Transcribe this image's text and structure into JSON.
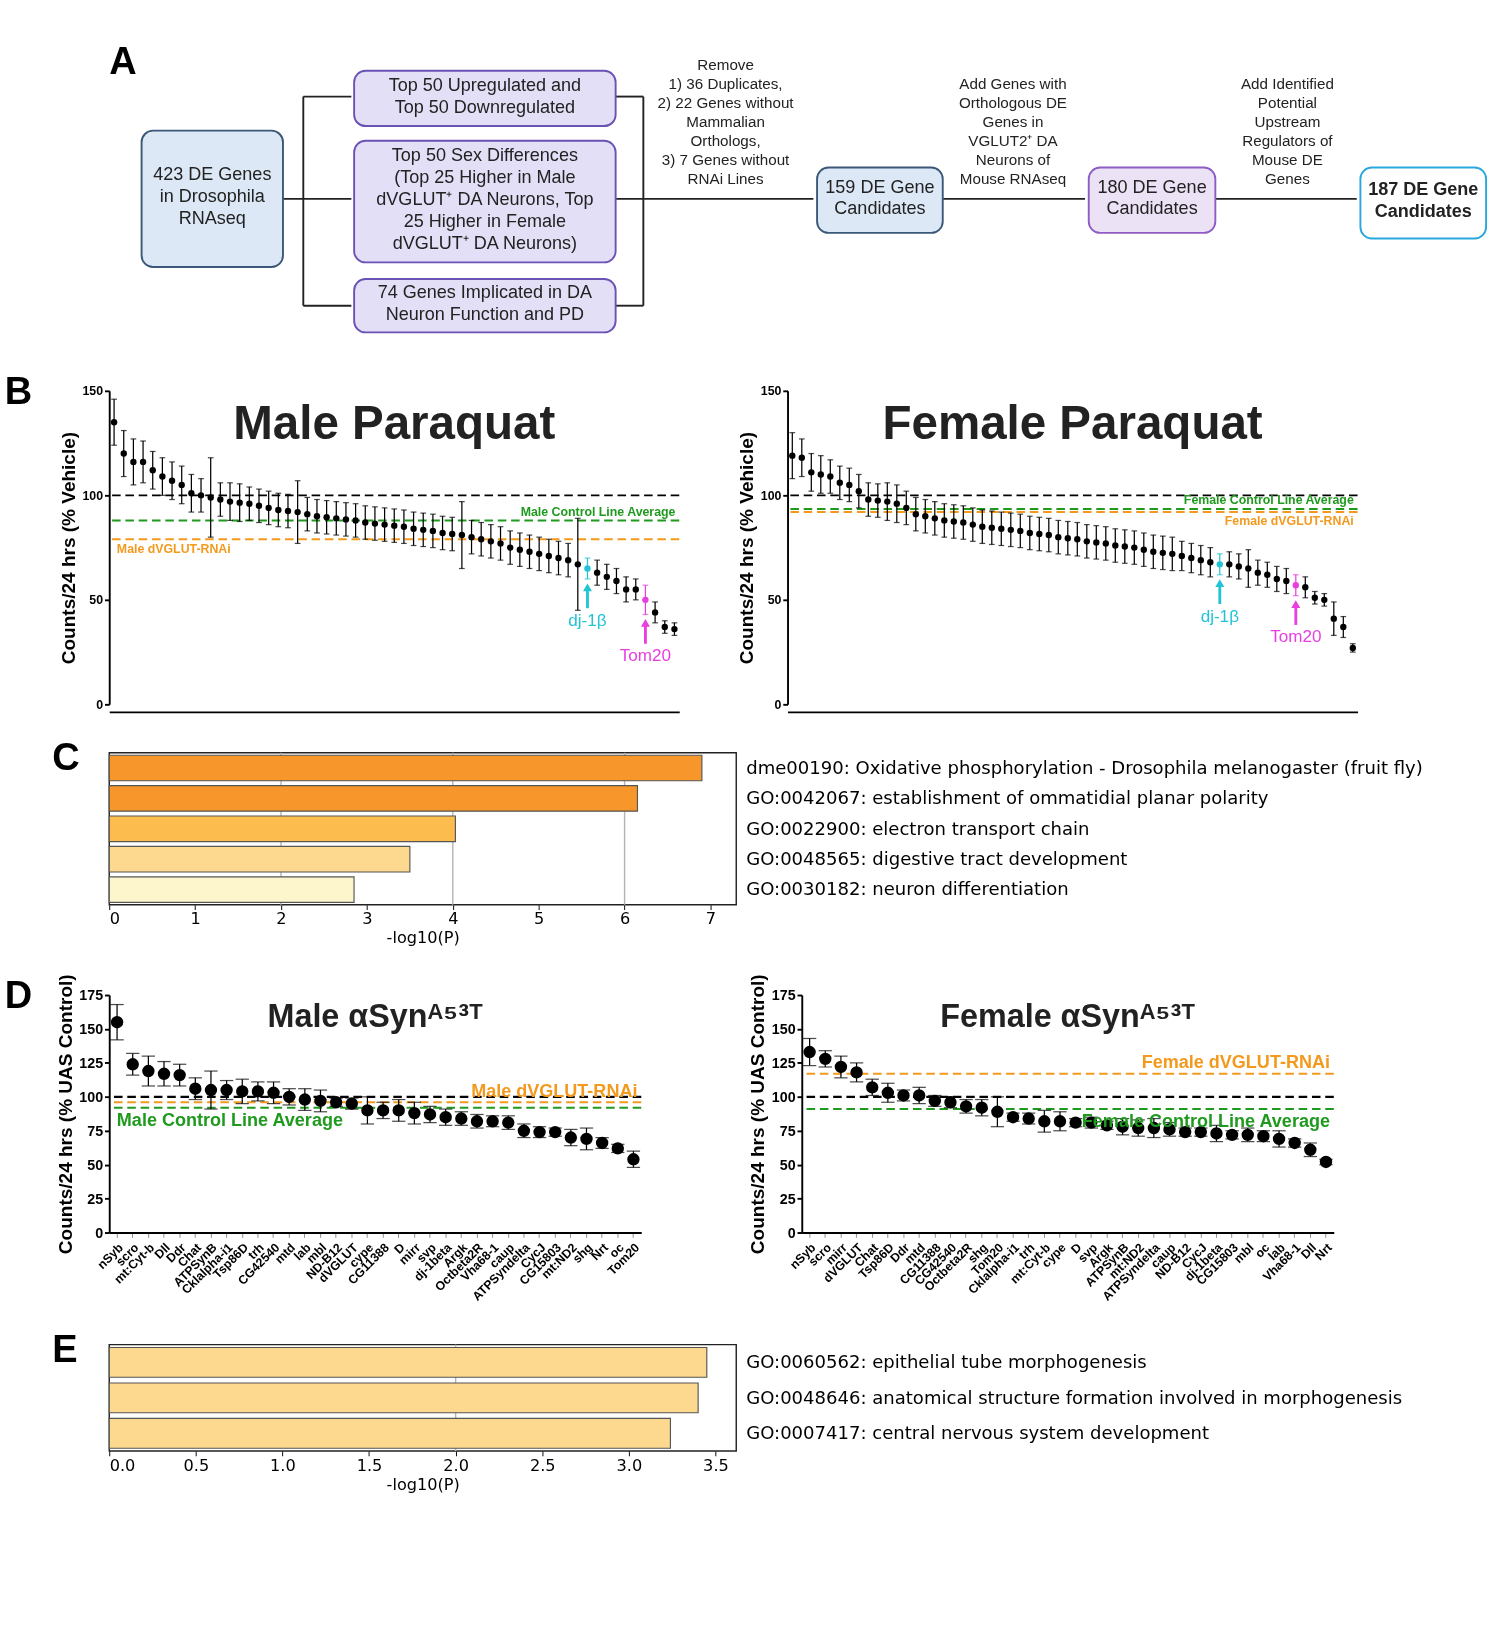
{
  "chart_data": [
    {
      "type": "other",
      "annotations": [
        "A",
        "423 DE Genes\nin Drosophila\nRNAseq",
        "Top 50 Upregulated and\nTop 50 Downregulated",
        "Top 50 Sex Differences\n(Top 25 Higher in Male\ndVGLUT⁺ DA Neurons, Top\n25 Higher in Female\ndVGLUT⁺ DA Neurons)",
        "74 Genes Implicated in DA\nNeuron Function and PD",
        "Remove\n1) 36 Duplicates,\n2) 22 Genes without\nMammalian\nOrthologs,\n3) 7 Genes without\nRNAi Lines",
        "159 DE Gene\nCandidates",
        "Add Genes with\nOrthologous DE\nGenes in\nVGLUT2⁺ DA\nNeurons of\nMouse RNAseq",
        "180 DE Gene\nCandidates",
        "Add Identified\nPotential\nUpstream\nRegulators of\nMouse DE\nGenes",
        "187 DE Gene\nCandidates"
      ]
    },
    {
      "type": "scatter",
      "title": "Male Paraquat",
      "ylabel": "Counts/24 hrs (% Vehicle)",
      "marker": "circle",
      "ylim": [
        0,
        150
      ],
      "yticks": [
        0,
        50,
        100,
        150
      ],
      "tick_labels": "y",
      "categories": [
        null,
        null,
        null,
        null,
        null,
        null,
        null,
        null,
        null,
        null,
        null,
        null,
        null,
        null,
        null,
        null,
        null,
        null,
        null,
        null,
        null,
        null,
        null,
        null,
        null,
        null,
        null,
        null,
        null,
        null,
        null,
        null,
        null,
        null,
        null,
        null,
        null,
        null,
        null,
        null,
        null,
        null,
        null,
        null,
        null,
        null,
        null,
        null,
        null,
        null,
        null,
        null,
        null,
        null,
        null,
        null,
        null,
        null,
        null
      ],
      "values": [
        135,
        120,
        116,
        116,
        112,
        109,
        107,
        105,
        101,
        100,
        99,
        98,
        97,
        96.5,
        96,
        95,
        94,
        93,
        92.5,
        92,
        91,
        90,
        89.5,
        89,
        88.5,
        88,
        87,
        86.5,
        86,
        85.5,
        85,
        84,
        83.5,
        83,
        82,
        81.5,
        81,
        80,
        79,
        78,
        77,
        75,
        74,
        73,
        72,
        71,
        70,
        69,
        67,
        65,
        63,
        61,
        59,
        55,
        55,
        50,
        44,
        37,
        36
      ],
      "errors": [
        11,
        11,
        11,
        10,
        9,
        9,
        9,
        9,
        9,
        8,
        19,
        8,
        9,
        9,
        8,
        8,
        8,
        8,
        8,
        15,
        8,
        8,
        8,
        8,
        8,
        8,
        8,
        8,
        8,
        8,
        8,
        8,
        8,
        8,
        8,
        8,
        16,
        8,
        8,
        8,
        8,
        8,
        8,
        8,
        8,
        8,
        8,
        8,
        22,
        5,
        6,
        6,
        6,
        6,
        5,
        7,
        5,
        3,
        3
      ],
      "colors": [
        "#000000",
        "#000000",
        "#000000",
        "#000000",
        "#000000",
        "#000000",
        "#000000",
        "#000000",
        "#000000",
        "#000000",
        "#000000",
        "#000000",
        "#000000",
        "#000000",
        "#000000",
        "#000000",
        "#000000",
        "#000000",
        "#000000",
        "#000000",
        "#000000",
        "#000000",
        "#000000",
        "#000000",
        "#000000",
        "#000000",
        "#000000",
        "#000000",
        "#000000",
        "#000000",
        "#000000",
        "#000000",
        "#000000",
        "#000000",
        "#000000",
        "#000000",
        "#000000",
        "#000000",
        "#000000",
        "#000000",
        "#000000",
        "#000000",
        "#000000",
        "#000000",
        "#000000",
        "#000000",
        "#000000",
        "#000000",
        "#000000",
        "#22c4d4",
        "#000000",
        "#000000",
        "#000000",
        "#000000",
        "#000000",
        "#e83fe0",
        "#000000",
        "#000000",
        "#000000"
      ],
      "ref_lines": [
        {
          "axis": "y",
          "value": 100,
          "color": "#000000",
          "line_style": "dashed"
        },
        {
          "axis": "y",
          "value": 88,
          "label": "Male Control Line Average",
          "color": "#1f9a1f",
          "line_style": "dashed"
        },
        {
          "axis": "y",
          "value": 79,
          "label": "Male dVGLUT-RNAi",
          "color": "#f39a1e",
          "line_style": "dashed"
        }
      ],
      "annotations": [
        "B",
        {
          "text": "dj-1β",
          "y": 65
        },
        {
          "text": "Tom20",
          "y": 50
        }
      ]
    },
    {
      "type": "scatter",
      "title": "Female Paraquat",
      "ylabel": "Counts/24 hrs (% Vehicle)",
      "marker": "circle",
      "ylim": [
        0,
        150
      ],
      "yticks": [
        0,
        50,
        100,
        150
      ],
      "tick_labels": "y",
      "categories": [
        null,
        null,
        null,
        null,
        null,
        null,
        null,
        null,
        null,
        null,
        null,
        null,
        null,
        null,
        null,
        null,
        null,
        null,
        null,
        null,
        null,
        null,
        null,
        null,
        null,
        null,
        null,
        null,
        null,
        null,
        null,
        null,
        null,
        null,
        null,
        null,
        null,
        null,
        null,
        null,
        null,
        null,
        null,
        null,
        null,
        null,
        null,
        null,
        null,
        null,
        null,
        null,
        null,
        null,
        null,
        null,
        null,
        null,
        null,
        null
      ],
      "values": [
        119,
        118,
        111,
        110,
        109,
        106,
        105,
        102,
        98,
        97.5,
        97,
        96,
        94,
        91,
        90,
        89,
        88,
        87.5,
        87,
        86,
        85,
        84.5,
        84,
        83.5,
        83,
        82,
        81.5,
        81,
        80,
        79.5,
        79,
        78,
        77.5,
        77,
        76,
        75.5,
        75,
        74,
        73,
        72.5,
        72,
        71,
        70,
        69,
        68,
        67,
        67,
        66,
        65,
        63,
        62,
        60,
        59,
        57,
        56,
        51,
        50,
        41,
        37,
        27
      ],
      "errors": [
        11,
        9,
        9,
        9,
        8,
        8,
        8,
        8,
        8,
        8,
        9,
        9,
        8,
        8,
        8,
        8,
        8,
        8,
        8,
        8,
        8,
        8,
        8,
        8,
        8,
        8,
        8,
        8,
        8,
        8,
        8,
        8,
        8,
        8,
        8,
        8,
        8,
        8,
        8,
        8,
        8,
        7,
        7,
        7,
        7,
        5,
        6,
        6,
        9,
        6,
        6,
        6,
        6,
        5,
        5,
        3,
        3,
        8,
        5,
        2
      ],
      "colors": [
        "#000000",
        "#000000",
        "#000000",
        "#000000",
        "#000000",
        "#000000",
        "#000000",
        "#000000",
        "#000000",
        "#000000",
        "#000000",
        "#000000",
        "#000000",
        "#000000",
        "#000000",
        "#000000",
        "#000000",
        "#000000",
        "#000000",
        "#000000",
        "#000000",
        "#000000",
        "#000000",
        "#000000",
        "#000000",
        "#000000",
        "#000000",
        "#000000",
        "#000000",
        "#000000",
        "#000000",
        "#000000",
        "#000000",
        "#000000",
        "#000000",
        "#000000",
        "#000000",
        "#000000",
        "#000000",
        "#000000",
        "#000000",
        "#000000",
        "#000000",
        "#000000",
        "#000000",
        "#22c4d4",
        "#000000",
        "#000000",
        "#000000",
        "#000000",
        "#000000",
        "#000000",
        "#000000",
        "#e83fe0",
        "#000000",
        "#000000",
        "#000000",
        "#000000",
        "#000000",
        "#000000"
      ],
      "ref_lines": [
        {
          "axis": "y",
          "value": 100,
          "color": "#000000",
          "line_style": "dashed"
        },
        {
          "axis": "y",
          "value": 93.5,
          "label": "Female Control Line Average",
          "color": "#1f9a1f",
          "line_style": "dashed"
        },
        {
          "axis": "y",
          "value": 92,
          "label": "Female dVGLUT-RNAi",
          "color": "#f39a1e",
          "line_style": "dashed"
        }
      ],
      "annotations": [
        {
          "text": "dj-1β",
          "y": 67
        },
        {
          "text": "Tom20",
          "y": 57
        }
      ]
    },
    {
      "type": "bar",
      "orientation": "horizontal",
      "xlabel": "-log10(P)",
      "xlim": [
        0,
        7.3
      ],
      "xticks": [
        0,
        1,
        2,
        3,
        4,
        5,
        6,
        7
      ],
      "categories": [
        "dme00190: Oxidative phosphorylation - Drosophila melanogaster (fruit fly)",
        "GO:0042067: establishment of ommatidial planar polarity",
        "GO:0022900: electron transport chain",
        "GO:0048565: digestive tract development",
        "GO:0030182: neuron differentiation"
      ],
      "values": [
        6.9,
        6.15,
        4.03,
        3.5,
        2.85
      ],
      "colors": [
        "#f7962a",
        "#f7962a",
        "#fcbc4e",
        "#fcd98e",
        "#fdf6cc"
      ],
      "ref_lines": [
        {
          "axis": "x",
          "value": 2,
          "color": "#b5b5b5",
          "line_style": "solid"
        },
        {
          "axis": "x",
          "value": 4,
          "color": "#b5b5b5",
          "line_style": "solid"
        },
        {
          "axis": "x",
          "value": 6,
          "color": "#b5b5b5",
          "line_style": "solid"
        }
      ],
      "annotations": [
        "C"
      ]
    },
    {
      "type": "scatter",
      "title": "Male αSynᴬ⁵³ᵀ",
      "ylabel": "Counts/24 hrs (% UAS Control)",
      "marker": "circle",
      "ylim": [
        0,
        175
      ],
      "yticks": [
        0,
        25,
        50,
        75,
        100,
        125,
        150,
        175
      ],
      "categories": [
        "nSyb",
        "scro",
        "mt:Cyt-b",
        "Dll",
        "Ddr",
        "Chat",
        "ATPSynB",
        "Cklalpha-i1",
        "Tsp86D",
        "trh",
        "CG42540",
        "mtd",
        "lab",
        "mbl",
        "ND-B12",
        "dVGLUT",
        "cype",
        "CG11388",
        "D",
        "mirr",
        "svp",
        "dj-1beta",
        "Argk",
        "Octbeta2R",
        "Vha68-1",
        "caup",
        "ATPSyndelta",
        "CycJ",
        "CG15803",
        "mt:ND2",
        "shg",
        "Nrt",
        "oc",
        "Tom20"
      ],
      "values": [
        155,
        124,
        119,
        117,
        116,
        106,
        105,
        105,
        104,
        104,
        103,
        100,
        98,
        97,
        96,
        95,
        90,
        90,
        90,
        88,
        87,
        85,
        84,
        82,
        82,
        81,
        75,
        74,
        74,
        70,
        69,
        66,
        62,
        54
      ],
      "errors": [
        13,
        8,
        11,
        9,
        8,
        8,
        14,
        7,
        9,
        7,
        8,
        6,
        8,
        8,
        3,
        4,
        10,
        6,
        8,
        8,
        6,
        6,
        5,
        5,
        4,
        5,
        5,
        4,
        3,
        6,
        8,
        4,
        3,
        6
      ],
      "color": "#000000",
      "ref_lines": [
        {
          "axis": "y",
          "value": 100,
          "color": "#000000",
          "line_style": "dashed"
        },
        {
          "axis": "y",
          "value": 96,
          "label": "Male dVGLUT-RNAi",
          "color": "#f39a1e",
          "line_style": "dashed"
        },
        {
          "axis": "y",
          "value": 92,
          "label": "Male Control Line Average",
          "color": "#1f9a1f",
          "line_style": "dashed"
        }
      ],
      "annotations": [
        "D"
      ]
    },
    {
      "type": "scatter",
      "title": "Female αSynᴬ⁵³ᵀ",
      "ylabel": "Counts/24 hrs (% UAS Control)",
      "marker": "circle",
      "ylim": [
        0,
        175
      ],
      "yticks": [
        0,
        25,
        50,
        75,
        100,
        125,
        150,
        175
      ],
      "categories": [
        "nSyb",
        "scro",
        "mirr",
        "dVGLUT",
        "Chat",
        "Tsp86D",
        "Ddr",
        "mtd",
        "CG11388",
        "CG42540",
        "Octbeta2R",
        "shg",
        "Tom20",
        "Cklalpha-i1",
        "trh",
        "mt:Cyt-b",
        "cype",
        "D",
        "svp",
        "Argk",
        "ATPSynB",
        "mt:ND2",
        "ATPSyndelta",
        "caup",
        "ND-B12",
        "CycJ",
        "dj-1beta",
        "CG15803",
        "mbl",
        "oc",
        "lab",
        "Vha68-1",
        "Dll",
        "Nrt"
      ],
      "values": [
        133,
        128,
        122,
        118,
        107,
        103,
        101,
        101,
        97,
        96,
        93,
        92,
        89,
        85,
        84,
        82,
        82,
        81,
        81,
        79,
        78,
        77,
        77,
        76,
        74,
        74,
        73,
        72,
        72,
        71,
        69,
        66,
        61,
        52
      ],
      "errors": [
        10,
        6,
        8,
        7,
        6,
        7,
        4,
        6,
        4,
        4,
        5,
        6,
        11,
        3,
        4,
        8,
        7,
        3,
        4,
        3,
        6,
        6,
        7,
        5,
        3,
        3,
        6,
        3,
        5,
        4,
        6,
        3,
        5,
        2
      ],
      "color": "#000000",
      "ref_lines": [
        {
          "axis": "y",
          "value": 100,
          "color": "#000000",
          "line_style": "dashed"
        },
        {
          "axis": "y",
          "value": 117,
          "label": "Female dVGLUT-RNAi",
          "color": "#f39a1e",
          "line_style": "dashed"
        },
        {
          "axis": "y",
          "value": 91,
          "label": "Female Control Line Average",
          "color": "#1f9a1f",
          "line_style": "dashed"
        }
      ]
    },
    {
      "type": "bar",
      "orientation": "horizontal",
      "xlabel": "-log10(P)",
      "xlim": [
        0,
        3.62
      ],
      "xticks": [
        {
          "value": 0,
          "label": "0.0"
        },
        {
          "value": 0.5,
          "label": "0.5"
        },
        {
          "value": 1,
          "label": "1.0"
        },
        {
          "value": 1.5,
          "label": "1.5"
        },
        {
          "value": 2,
          "label": "2.0"
        },
        {
          "value": 2.5,
          "label": "2.5"
        },
        {
          "value": 3,
          "label": "3.0"
        },
        {
          "value": 3.5,
          "label": "3.5"
        }
      ],
      "categories": [
        "GO:0060562: epithelial tube morphogenesis",
        "GO:0048646: anatomical structure formation involved in morphogenesis",
        "GO:0007417: central nervous system development"
      ],
      "values": [
        3.45,
        3.4,
        3.24
      ],
      "colors": [
        "#fcd98e",
        "#fcd98e",
        "#fcd98e"
      ],
      "ref_lines": [
        {
          "axis": "x",
          "value": 2,
          "color": "#b5b5b5",
          "line_style": "solid"
        }
      ],
      "annotations": [
        "E"
      ]
    }
  ]
}
